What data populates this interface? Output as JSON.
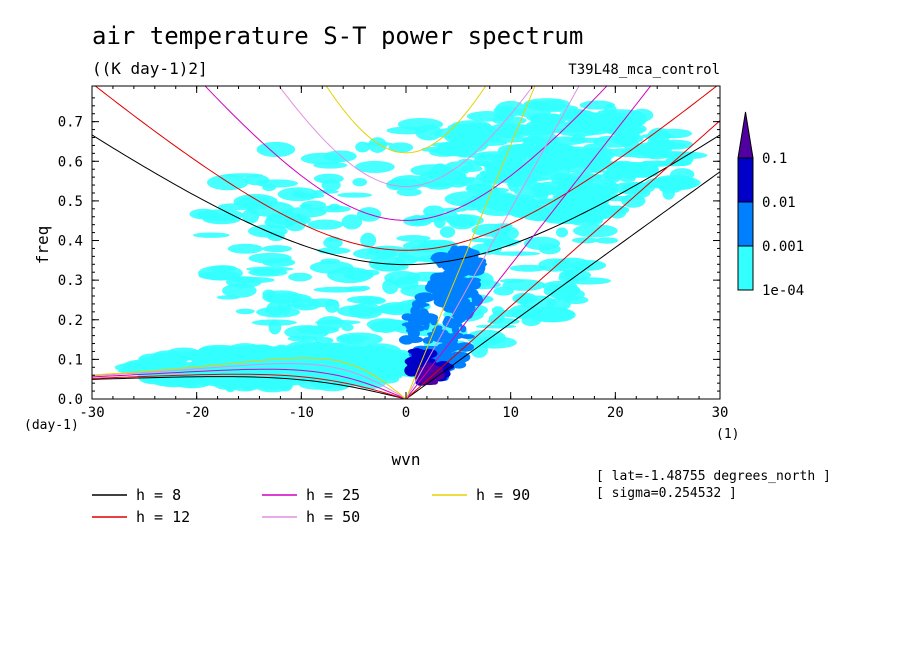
{
  "header": {
    "title": "air temperature S-T power spectrum",
    "units": "((K day-1)2]",
    "dataset": "T39L48_mca_control"
  },
  "info": {
    "lat": "[ lat=-1.48755 degrees_north ]",
    "sigma": "[ sigma=0.254532 ]"
  },
  "chart_data": {
    "type": "heatmap",
    "title": "air temperature S-T power spectrum",
    "subtitle": "((K day-1)2]",
    "xlabel": "wvn",
    "ylabel": "freq",
    "x_unit": "(1)",
    "y_unit": "(day-1)",
    "xlim": [
      -30,
      30
    ],
    "ylim": [
      0,
      0.79
    ],
    "x_ticks": [
      -30,
      -20,
      -10,
      0,
      10,
      20,
      30
    ],
    "x_tick_labels": [
      "-30",
      "-20",
      "-10",
      "0",
      "10",
      "20",
      "30"
    ],
    "y_ticks": [
      0,
      0.1,
      0.2,
      0.3,
      0.4,
      0.5,
      0.6,
      0.7
    ],
    "y_tick_labels": [
      "0.0",
      "0.1",
      "0.2",
      "0.3",
      "0.4",
      "0.5",
      "0.6",
      "0.7"
    ],
    "grid": false,
    "colorbar": {
      "levels": [
        "1e-04",
        "0.001",
        "0.01",
        "0.1"
      ],
      "colors": [
        "#33ffff",
        "#0080ff",
        "#0000c8",
        "#5000a0"
      ]
    },
    "dispersion_curves": [
      {
        "label": "h =  8",
        "h": 8,
        "color": "#000000"
      },
      {
        "label": "h = 12",
        "h": 12,
        "color": "#e00000"
      },
      {
        "label": "h = 25",
        "h": 25,
        "color": "#d000c0"
      },
      {
        "label": "h = 50",
        "h": 50,
        "color": "#e090e0"
      },
      {
        "label": "h = 90",
        "h": 90,
        "color": "#e8d000"
      }
    ],
    "legend_position": "bottom-left",
    "power_regions": [
      {
        "level": 1,
        "cx": 0,
        "cy": 0.4,
        "rx": 20,
        "ry": 0.3
      },
      {
        "level": 1,
        "cx": -12,
        "cy": 0.08,
        "rx": 14,
        "ry": 0.05
      },
      {
        "level": 1,
        "cx": 15,
        "cy": 0.6,
        "rx": 12,
        "ry": 0.15
      },
      {
        "level": 2,
        "cx": 3,
        "cy": 0.17,
        "rx": 3,
        "ry": 0.12
      },
      {
        "level": 2,
        "cx": 5,
        "cy": 0.3,
        "rx": 2.5,
        "ry": 0.08
      },
      {
        "level": 3,
        "cx": 2,
        "cy": 0.08,
        "rx": 1.8,
        "ry": 0.05
      },
      {
        "level": 4,
        "cx": 2.5,
        "cy": 0.06,
        "rx": 0.8,
        "ry": 0.02
      }
    ]
  }
}
